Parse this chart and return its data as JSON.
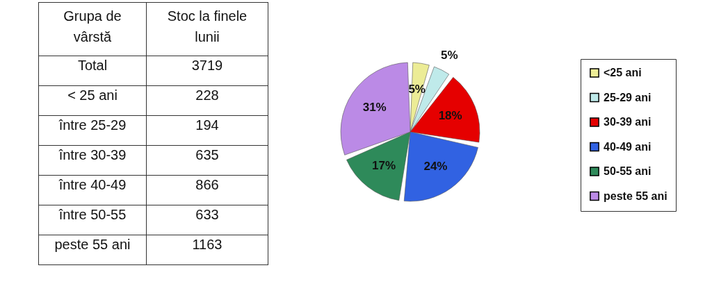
{
  "chart_data": [
    {
      "type": "other",
      "ylabel": "Grupa de vârstă",
      "xlabel": "Stoc la finele lunii",
      "categories": [
        "Total",
        "< 25 ani",
        "între 25-29",
        "între 30-39",
        "între 40-49",
        "între 50-55",
        "peste 55 ani"
      ],
      "values": [
        3719,
        228,
        194,
        635,
        866,
        633,
        1163
      ],
      "data_labels": true
    },
    {
      "type": "pie",
      "categories": [
        "<25 ani",
        "25-29 ani",
        "30-39 ani",
        "40-49 ani",
        "50-55 ani",
        "peste 55 ani"
      ],
      "values": [
        5,
        5,
        18,
        24,
        17,
        31
      ],
      "value_labels": [
        "5%",
        "5%",
        "18%",
        "24%",
        "17%",
        "31%"
      ],
      "colors": [
        "#ecec96",
        "#bfeaea",
        "#e50000",
        "#3162e2",
        "#2e8a5a",
        "#bb8ae6"
      ],
      "legend": "right"
    }
  ]
}
